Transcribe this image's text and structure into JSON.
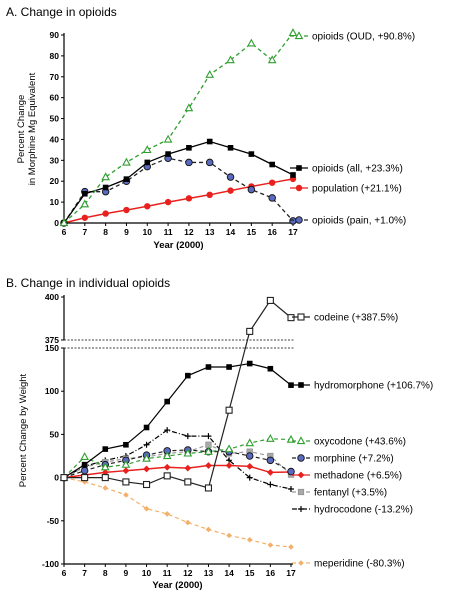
{
  "chart_data": [
    {
      "type": "line",
      "title": "A. Change in opioids",
      "xlabel": "Year (2000)",
      "ylabel_lines": [
        "Percent Change",
        "in Morphine Mg Equivalent"
      ],
      "x": [
        6,
        7,
        8,
        9,
        10,
        11,
        12,
        13,
        14,
        15,
        16,
        17
      ],
      "xlim": [
        6,
        17
      ],
      "ylim": [
        0,
        90
      ],
      "yticks": [
        0,
        10,
        20,
        30,
        40,
        50,
        60,
        70,
        80,
        90
      ],
      "legend_placement": "right",
      "series": [
        {
          "name": "opioids (OUD, +90.8%)",
          "color": "#2e9e2e",
          "dash": "4,3",
          "marker": "triangle-open",
          "values": [
            0,
            9,
            22,
            29,
            35,
            40,
            55,
            71,
            78,
            86,
            78,
            91
          ]
        },
        {
          "name": "opioids (all, +23.3%)",
          "color": "#000000",
          "dash": "",
          "marker": "square-filled",
          "values": [
            0,
            14,
            17,
            21,
            29,
            33,
            36,
            39,
            36,
            33,
            28,
            23
          ]
        },
        {
          "name": "population (+21.1%)",
          "color": "#e8211e",
          "dash": "",
          "marker": "circle-filled",
          "values": [
            0,
            2.5,
            4.5,
            6.2,
            8,
            10,
            11.8,
            13.5,
            15.5,
            17.5,
            19.3,
            21.1
          ]
        },
        {
          "name": "opioids (pain, +1.0%)",
          "color": "#222222",
          "fill": "#5a6bbf",
          "dash": "4,3",
          "marker": "circle-blue",
          "values": [
            0,
            15,
            15,
            20,
            27,
            31,
            29,
            29,
            22,
            16,
            12,
            1
          ]
        }
      ]
    },
    {
      "type": "line",
      "title": "B. Change in individual opioids",
      "xlabel": "Year (2000)",
      "ylabel": "Percent Change by Weight",
      "x": [
        6,
        7,
        8,
        9,
        10,
        11,
        12,
        13,
        14,
        15,
        16,
        17
      ],
      "xlim": [
        6,
        17
      ],
      "ylim": [
        -100,
        400
      ],
      "broken_axis": {
        "lower": [
          -100,
          150
        ],
        "upper": [
          375,
          400
        ]
      },
      "yticks": [
        -100,
        -50,
        0,
        50,
        100,
        150,
        375,
        400
      ],
      "legend_placement": "right",
      "series": [
        {
          "name": "codeine (+387.5%)",
          "color": "#222222",
          "dash": "",
          "marker": "square-open",
          "values": [
            0,
            0,
            0,
            -5,
            -8,
            2,
            -5,
            -12,
            78,
            380,
            398,
            388
          ]
        },
        {
          "name": "hydromorphone (+106.7%)",
          "color": "#000000",
          "dash": "",
          "marker": "square-filled",
          "values": [
            0,
            15,
            33,
            38,
            58,
            88,
            118,
            128,
            128,
            132,
            126,
            107
          ]
        },
        {
          "name": "oxycodone (+43.6%)",
          "color": "#2e9e2e",
          "dash": "4,3",
          "marker": "triangle-open",
          "values": [
            0,
            24,
            12,
            15,
            22,
            25,
            28,
            30,
            33,
            40,
            45,
            44
          ]
        },
        {
          "name": "morphine (+7.2%)",
          "color": "#222222",
          "fill": "#5a6bbf",
          "dash": "4,3",
          "marker": "circle-blue",
          "values": [
            0,
            8,
            15,
            20,
            26,
            31,
            32,
            30,
            30,
            25,
            20,
            7
          ]
        },
        {
          "name": "methadone (+6.5%)",
          "color": "#e8211e",
          "dash": "",
          "marker": "diamond-filled",
          "values": [
            0,
            3,
            6,
            8,
            10,
            12,
            11,
            14,
            14,
            13,
            6,
            6.5
          ]
        },
        {
          "name": "fentanyl (+3.5%)",
          "color": "#9a9a9a",
          "dash": "4,3",
          "marker": "square-gray",
          "values": [
            0,
            12,
            18,
            22,
            24,
            28,
            30,
            38,
            28,
            30,
            25,
            3.5
          ]
        },
        {
          "name": "hydrocodone (-13.2%)",
          "color": "#000000",
          "dash": "5,2,1,2",
          "marker": "plus",
          "values": [
            0,
            13,
            20,
            25,
            38,
            55,
            48,
            48,
            20,
            0,
            -8,
            -13.2
          ]
        },
        {
          "name": "meperidine (-80.3%)",
          "color": "#f3b06a",
          "dash": "4,3",
          "marker": "diamond-orange",
          "values": [
            0,
            -5,
            -12,
            -20,
            -36,
            -42,
            -52,
            -60,
            -67,
            -72,
            -78,
            -80.3
          ]
        }
      ]
    }
  ]
}
